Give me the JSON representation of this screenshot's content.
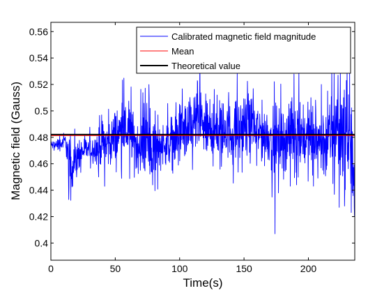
{
  "chart_data": {
    "type": "line",
    "xlabel": "Time(s)",
    "ylabel": "Magnetic field (Gauss)",
    "xlim": [
      0,
      236
    ],
    "ylim": [
      0.387,
      0.567
    ],
    "x_ticks": [
      0,
      50,
      100,
      150,
      200
    ],
    "x_tick_labels": [
      "0",
      "50",
      "100",
      "150",
      "200"
    ],
    "y_ticks": [
      0.4,
      0.42,
      0.44,
      0.46,
      0.48,
      0.5,
      0.52,
      0.54,
      0.56
    ],
    "y_tick_labels": [
      "0.4",
      "0.42",
      "0.44",
      "0.46",
      "0.48",
      "0.5",
      "0.52",
      "0.54",
      "0.56"
    ],
    "grid": false,
    "legend_position": "top-right",
    "series": [
      {
        "name": "Calibrated magnetic field magnitude",
        "color": "#0000ff",
        "kind": "noisy",
        "x": [
          0,
          8,
          10,
          12,
          13,
          16,
          20,
          25,
          30,
          35,
          40,
          45,
          50,
          55,
          60,
          63,
          66,
          70,
          75,
          78,
          80,
          85,
          90,
          95,
          100,
          105,
          110,
          114,
          117,
          120,
          125,
          130,
          135,
          140,
          145,
          150,
          155,
          160,
          165,
          170,
          173,
          175,
          180,
          185,
          190,
          195,
          200,
          205,
          210,
          215,
          218,
          222,
          225,
          228,
          232,
          234,
          236
        ],
        "y": [
          0.474,
          0.475,
          0.477,
          0.476,
          0.466,
          0.458,
          0.463,
          0.47,
          0.471,
          0.472,
          0.474,
          0.476,
          0.48,
          0.485,
          0.484,
          0.48,
          0.474,
          0.475,
          0.478,
          0.474,
          0.472,
          0.474,
          0.476,
          0.478,
          0.481,
          0.485,
          0.487,
          0.494,
          0.49,
          0.486,
          0.484,
          0.485,
          0.486,
          0.484,
          0.485,
          0.487,
          0.487,
          0.485,
          0.483,
          0.481,
          0.476,
          0.479,
          0.477,
          0.481,
          0.486,
          0.483,
          0.479,
          0.478,
          0.476,
          0.476,
          0.481,
          0.486,
          0.49,
          0.483,
          0.472,
          0.458,
          0.43
        ],
        "amp": [
          0.002,
          0.003,
          0.004,
          0.006,
          0.01,
          0.009,
          0.008,
          0.006,
          0.006,
          0.007,
          0.009,
          0.012,
          0.013,
          0.013,
          0.012,
          0.013,
          0.013,
          0.013,
          0.014,
          0.014,
          0.012,
          0.01,
          0.01,
          0.012,
          0.013,
          0.014,
          0.015,
          0.016,
          0.015,
          0.014,
          0.013,
          0.013,
          0.013,
          0.013,
          0.014,
          0.014,
          0.014,
          0.013,
          0.013,
          0.013,
          0.014,
          0.016,
          0.014,
          0.014,
          0.015,
          0.016,
          0.016,
          0.016,
          0.017,
          0.018,
          0.02,
          0.022,
          0.024,
          0.024,
          0.022,
          0.02,
          0.01
        ],
        "spikes": [
          [
            14,
            0.442
          ],
          [
            16,
            0.453
          ],
          [
            37,
            0.45
          ],
          [
            53,
            0.493
          ],
          [
            56,
            0.496
          ],
          [
            71,
            0.461
          ],
          [
            77,
            0.502
          ],
          [
            78,
            0.454
          ],
          [
            79,
            0.444
          ],
          [
            81,
            0.5
          ],
          [
            114,
            0.522
          ],
          [
            117,
            0.501
          ],
          [
            129,
            0.512
          ],
          [
            138,
            0.514
          ],
          [
            156,
            0.509
          ],
          [
            158,
            0.5
          ],
          [
            174,
            0.407
          ],
          [
            186,
            0.443
          ],
          [
            202,
            0.51
          ],
          [
            204,
            0.443
          ],
          [
            210,
            0.52
          ],
          [
            215,
            0.515
          ],
          [
            219,
            0.445
          ],
          [
            220,
            0.53
          ],
          [
            223,
            0.527
          ],
          [
            224,
            0.427
          ],
          [
            228,
            0.428
          ],
          [
            230,
            0.535
          ],
          [
            232,
            0.53
          ]
        ]
      },
      {
        "name": "Mean",
        "color": "#ff0000",
        "value": 0.4813
      },
      {
        "name": "Theoretical value",
        "color": "#000000",
        "value": 0.4821
      }
    ]
  }
}
